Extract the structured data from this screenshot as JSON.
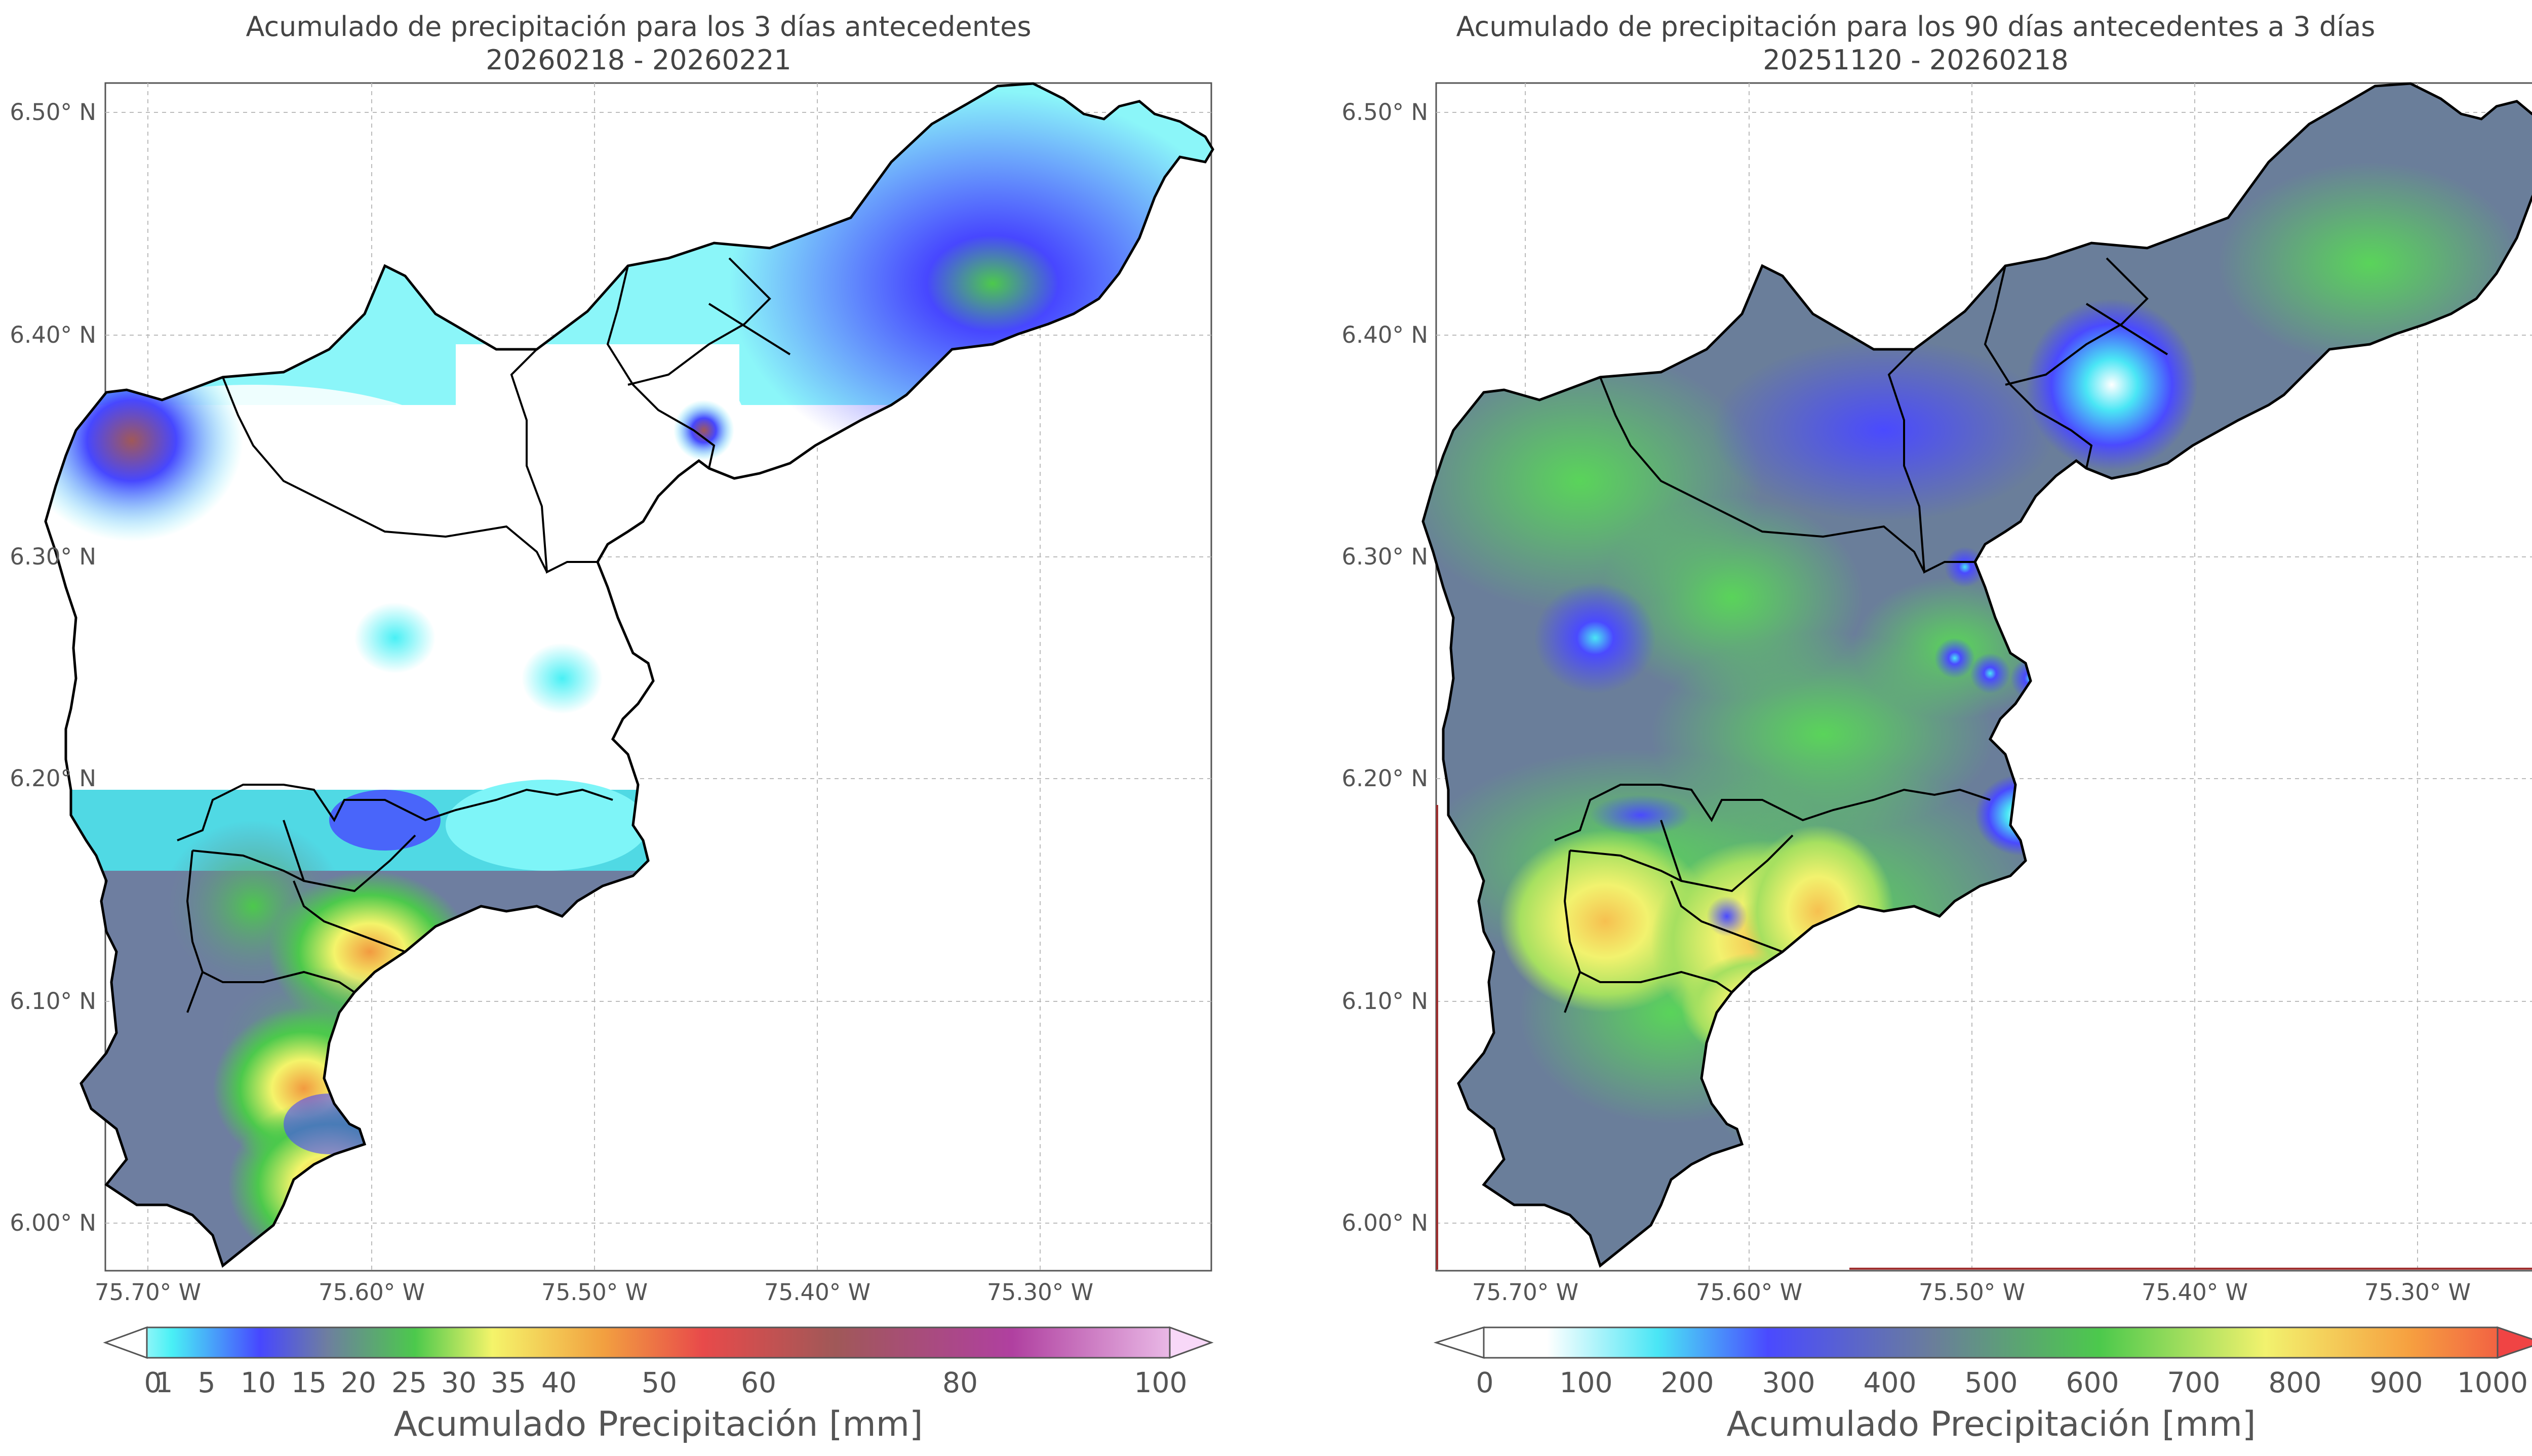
{
  "panels": [
    {
      "title_line1": "Acumulado de precipitación para los 3 días antecedentes",
      "title_line2": "20260218 - 20260221",
      "colorbar_label": "Acumulado Precipitación [mm]",
      "colorbar_ticks": [
        "0",
        "1",
        "5",
        "10",
        "15",
        "20",
        "25",
        "30",
        "35",
        "40",
        "50",
        "60",
        "80",
        "100"
      ],
      "colorbar_colors": [
        "#ffffff",
        "#49f0f5",
        "#4747ff",
        "#707ea0",
        "#4cc94c",
        "#f4f46a",
        "#f2a040",
        "#e84a4a",
        "#a05858",
        "#b040a0",
        "#f8d8f8"
      ]
    },
    {
      "title_line1": "Acumulado de precipitación para los 90 días antecedentes a 3 días",
      "title_line2": "20251120 - 20260218",
      "colorbar_label": "Acumulado Precipitación [mm]",
      "colorbar_ticks": [
        "0",
        "100",
        "200",
        "300",
        "400",
        "500",
        "600",
        "700",
        "800",
        "900",
        "1000"
      ],
      "colorbar_colors": [
        "#ffffff",
        "#4ae6f5",
        "#4a4aff",
        "#6a7e9a",
        "#4cc94c",
        "#f2f26e",
        "#f6a040",
        "#f04444"
      ]
    }
  ],
  "lat_ticks": [
    "6.50° N",
    "6.40° N",
    "6.30° N",
    "6.20° N",
    "6.10° N",
    "6.00° N"
  ],
  "lon_ticks": [
    "75.70° W",
    "75.60° W",
    "75.50° W",
    "75.40° W",
    "75.30° W"
  ]
}
